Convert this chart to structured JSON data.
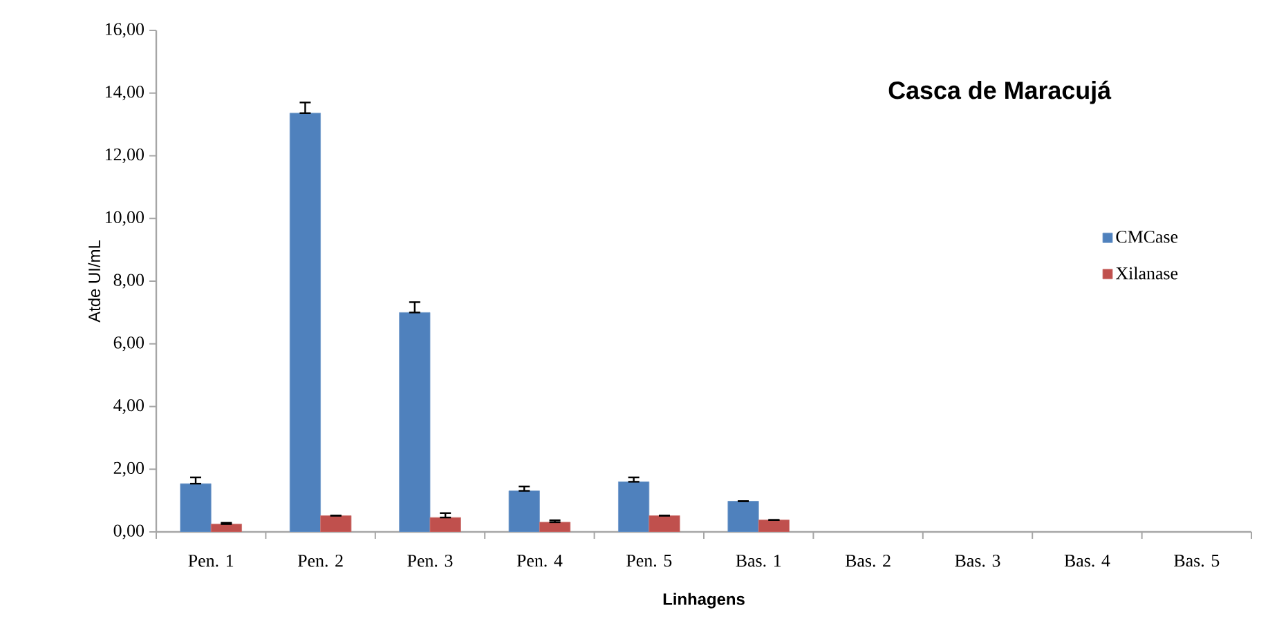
{
  "chart_data": {
    "type": "bar",
    "title": "Casca de Maracujá",
    "xlabel": "Linhagens",
    "ylabel": "Atde UI/mL",
    "categories": [
      "Pen. 1",
      "Pen. 2",
      "Pen. 3",
      "Pen. 4",
      "Pen. 5",
      "Bas. 1",
      "Bas. 2",
      "Bas. 3",
      "Bas. 4",
      "Bas. 5"
    ],
    "series": [
      {
        "name": "CMCase",
        "color": "#4f81bd",
        "values": [
          1.54,
          13.36,
          7.0,
          1.31,
          1.6,
          0.98,
          null,
          null,
          null,
          null
        ],
        "errors": [
          [
            1.54,
            1.74
          ],
          [
            13.36,
            13.7
          ],
          [
            7.0,
            7.33
          ],
          [
            1.31,
            1.45
          ],
          [
            1.6,
            1.74
          ],
          null,
          null,
          null,
          null,
          null
        ]
      },
      {
        "name": "Xilanase",
        "color": "#c0504d",
        "values": [
          0.25,
          0.52,
          0.46,
          0.31,
          0.52,
          0.38,
          null,
          null,
          null,
          null
        ],
        "errors": [
          [
            0.25,
            0.29
          ],
          null,
          [
            0.46,
            0.6
          ],
          [
            0.31,
            0.37
          ],
          null,
          null,
          null,
          null,
          null,
          null
        ]
      }
    ],
    "ylim": [
      0,
      16
    ],
    "yticks": [
      {
        "value": 0,
        "label": "0,00"
      },
      {
        "value": 2,
        "label": "2,00"
      },
      {
        "value": 4,
        "label": "4,00"
      },
      {
        "value": 6,
        "label": "6,00"
      },
      {
        "value": 8,
        "label": "8,00"
      },
      {
        "value": 10,
        "label": "10,00"
      },
      {
        "value": 12,
        "label": "12,00"
      },
      {
        "value": 14,
        "label": "14,00"
      },
      {
        "value": 16,
        "label": "16,00"
      }
    ],
    "legend": "right",
    "grid": false
  }
}
